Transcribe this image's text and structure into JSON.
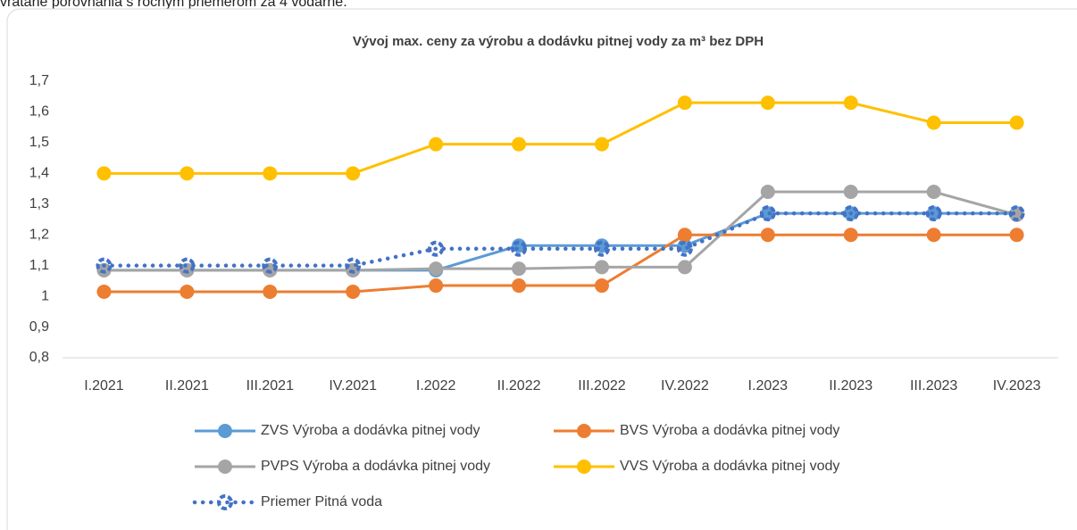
{
  "intro": "vrátane porovnania s ročným priemerom za 4 vodárne.",
  "chart_data": {
    "type": "line",
    "title": "Vývoj max. ceny za výrobu a dodávku pitnej vody za m³ bez DPH",
    "categories": [
      "I.2021",
      "II.2021",
      "III.2021",
      "IV.2021",
      "I.2022",
      "II.2022",
      "III.2022",
      "IV.2022",
      "I.2023",
      "II.2023",
      "III.2023",
      "IV.2023"
    ],
    "ylim": [
      0.8,
      1.7
    ],
    "yticks": [
      {
        "value": 0.8,
        "label": "0,8"
      },
      {
        "value": 0.9,
        "label": "0,9"
      },
      1,
      {
        "value": 1.1,
        "label": "1,1"
      },
      {
        "value": 1.2,
        "label": "1,2"
      },
      {
        "value": 1.3,
        "label": "1,3"
      },
      {
        "value": 1.4,
        "label": "1,4"
      },
      {
        "value": 1.5,
        "label": "1,5"
      },
      {
        "value": 1.6,
        "label": "1,6"
      },
      {
        "value": 1.7,
        "label": "1,7"
      }
    ],
    "grid": false,
    "series": [
      {
        "name": "ZVS Výroba a dodávka pitnej vody",
        "color": "#5b9bd5",
        "values": [
          1.085,
          1.085,
          1.085,
          1.085,
          1.085,
          1.165,
          1.165,
          1.165,
          1.27,
          1.27,
          1.27,
          1.27
        ]
      },
      {
        "name": "BVS Výroba a dodávka pitnej vody",
        "color": "#ed7d31",
        "values": [
          1.015,
          1.015,
          1.015,
          1.015,
          1.035,
          1.035,
          1.035,
          1.2,
          1.2,
          1.2,
          1.2,
          1.2
        ]
      },
      {
        "name": "PVPS Výroba a dodávka pitnej vody",
        "color": "#a5a5a5",
        "values": [
          1.085,
          1.085,
          1.085,
          1.085,
          1.09,
          1.09,
          1.095,
          1.095,
          1.34,
          1.34,
          1.34,
          1.265
        ]
      },
      {
        "name": "VVS Výroba a dodávka pitnej vody",
        "color": "#ffc000",
        "values": [
          1.4,
          1.4,
          1.4,
          1.4,
          1.495,
          1.495,
          1.495,
          1.63,
          1.63,
          1.63,
          1.565,
          1.565
        ]
      },
      {
        "name": "Priemer Pitná voda",
        "color": "#4472c4",
        "dotted": true,
        "values": [
          1.1,
          1.1,
          1.1,
          1.1,
          1.155,
          1.155,
          1.155,
          1.155,
          1.27,
          1.27,
          1.27,
          1.27
        ]
      }
    ]
  }
}
